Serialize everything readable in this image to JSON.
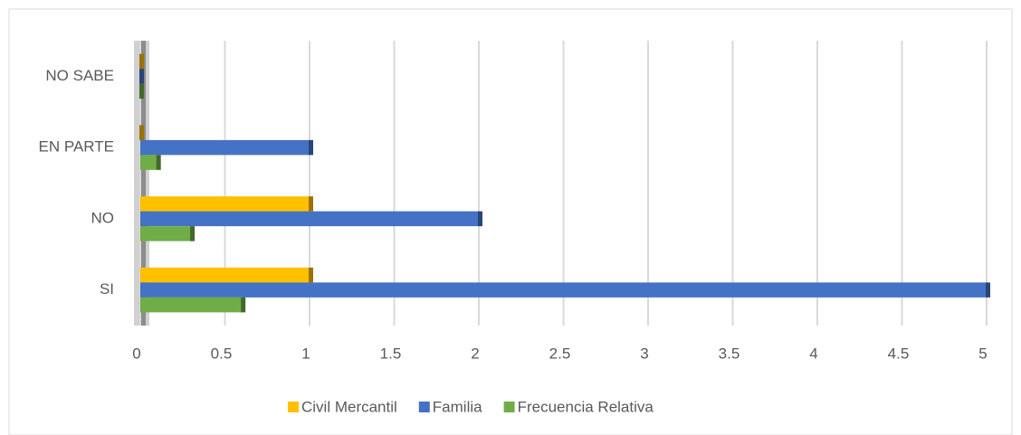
{
  "chart_data": {
    "type": "bar",
    "orientation": "horizontal",
    "categories": [
      "SI",
      "NO",
      "EN PARTE",
      "NO SABE"
    ],
    "series": [
      {
        "name": "Civil Mercantil",
        "color": "#ffc000",
        "values": [
          1,
          1,
          0,
          0
        ]
      },
      {
        "name": "Familia",
        "color": "#4472c4",
        "values": [
          5,
          2,
          1,
          0
        ]
      },
      {
        "name": "Frecuencia Relativa",
        "color": "#70ad47",
        "values": [
          0.6,
          0.3,
          0.1,
          0
        ]
      }
    ],
    "xlim": [
      0,
      5
    ],
    "xticks": [
      0,
      0.5,
      1,
      1.5,
      2,
      2.5,
      3,
      3.5,
      4,
      4.5,
      5
    ],
    "grid": true,
    "legend": "bottom"
  }
}
